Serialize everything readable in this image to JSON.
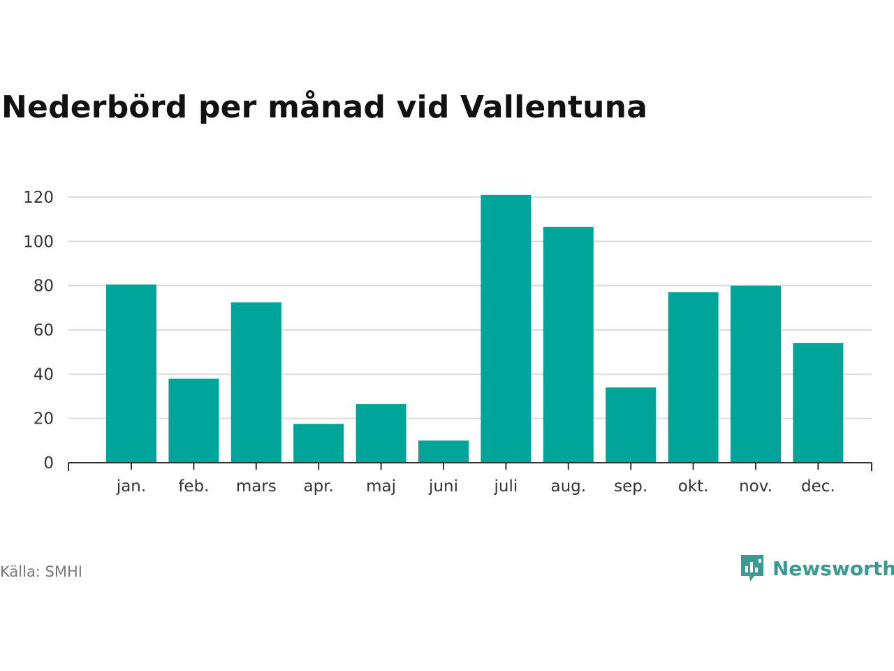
{
  "title": "Nederbörd per månad vid Vallentuna",
  "source": "Källa: SMHI",
  "brand": {
    "name": "Newsworthy",
    "icon": "newsworthy-logo-icon",
    "color": "#3a9b92"
  },
  "colors": {
    "bar": "#00a59a",
    "grid": "#dcdcdc",
    "axis": "#333333"
  },
  "chart_data": {
    "type": "bar",
    "categories": [
      "jan.",
      "feb.",
      "mars",
      "apr.",
      "maj",
      "juni",
      "juli",
      "aug.",
      "sep.",
      "okt.",
      "nov.",
      "dec."
    ],
    "values": [
      80.5,
      38,
      72.5,
      17.5,
      26.5,
      10,
      121,
      106.5,
      34,
      77,
      80,
      54
    ],
    "yticks": [
      0,
      20,
      40,
      60,
      80,
      100,
      120
    ],
    "ylim": [
      0,
      120
    ],
    "grid": true,
    "legend": false,
    "xlabel": "",
    "ylabel": ""
  }
}
